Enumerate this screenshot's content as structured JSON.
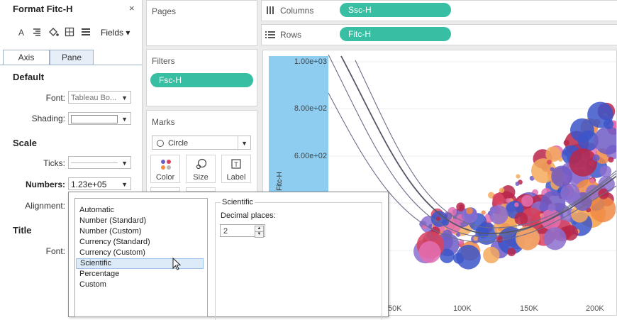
{
  "format_pane": {
    "title": "Format Fitc-H",
    "close": "×",
    "fields_label": "Fields",
    "tabs": [
      "Axis",
      "Pane"
    ],
    "sections": {
      "default": "Default",
      "scale": "Scale",
      "title": "Title"
    },
    "rows": {
      "font_label": "Font:",
      "font_value": "Tableau Bo...",
      "shading_label": "Shading:",
      "ticks_label": "Ticks:",
      "numbers_label": "Numbers:",
      "numbers_value": "1.23e+05",
      "alignment_label": "Alignment:",
      "title_font_label": "Font:"
    }
  },
  "shelves": {
    "pages": "Pages",
    "filters": "Filters",
    "filter_pill": "Fsc-H",
    "marks": "Marks",
    "mark_type": "Circle",
    "mark_buttons": [
      "Color",
      "Size",
      "Label"
    ],
    "columns_label": "Columns",
    "columns_pill": "Ssc-H",
    "rows_label": "Rows",
    "rows_pill": "Fitc-H"
  },
  "number_format_popup": {
    "options": [
      "Automatic",
      "Number (Standard)",
      "Number (Custom)",
      "Currency (Standard)",
      "Currency (Custom)",
      "Scientific",
      "Percentage",
      "Custom"
    ],
    "selected": "Scientific",
    "group_title": "Scientific",
    "decimal_label": "Decimal places:",
    "decimal_value": "2"
  },
  "chart": {
    "y_axis_title": "Fitc-H",
    "y_ticks": [
      "1.00e+03",
      "8.00e+02",
      "6.00e+02"
    ],
    "x_ticks": [
      "50K",
      "100K",
      "150K",
      "200K"
    ],
    "colors": {
      "bubble_palette": [
        "#6f5cc5",
        "#d9435e",
        "#f08a44",
        "#e46fb1",
        "#b9274a",
        "#3b55c9",
        "#8b6fd0",
        "#f4a95c"
      ]
    }
  }
}
